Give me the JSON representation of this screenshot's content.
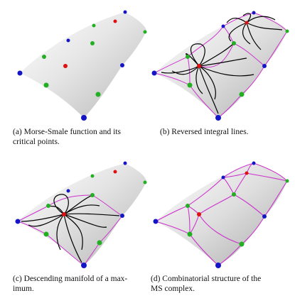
{
  "figure": {
    "panels": [
      {
        "id": "a",
        "caption_lines": [
          "(a) Morse-Smale function and its",
          "critical points."
        ]
      },
      {
        "id": "b",
        "caption_lines": [
          "(b) Reversed integral lines."
        ]
      },
      {
        "id": "c",
        "caption_lines": [
          "(c) Descending manifold of a max-",
          "imum."
        ]
      },
      {
        "id": "d",
        "caption_lines": [
          "(d) Combinatorial structure of the",
          "MS complex."
        ]
      }
    ],
    "colors": {
      "maximum": "#e01010",
      "saddle": "#22b022",
      "minimum": "#1515c8",
      "arc": "#cc33cc",
      "integral_line": "#000000",
      "surface_light": "#f5f5f5",
      "surface_dark": "#9a9a9a"
    }
  }
}
